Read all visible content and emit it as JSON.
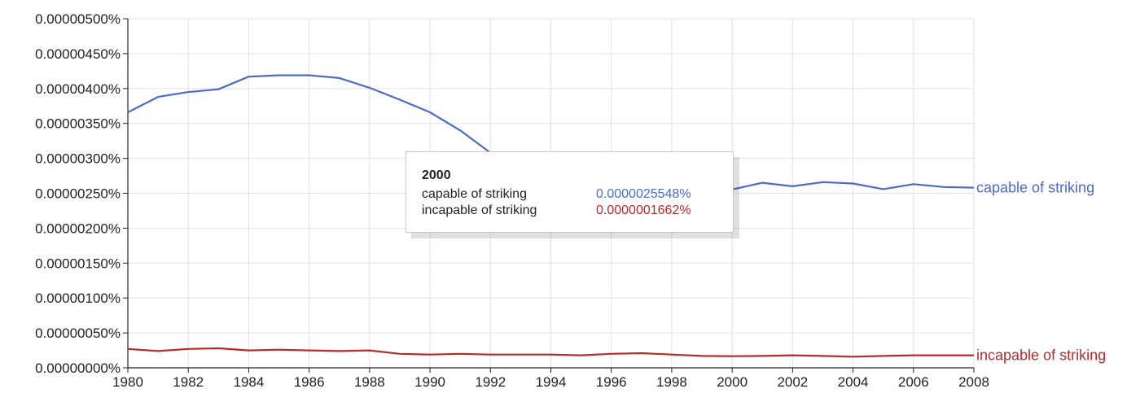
{
  "chart_data": {
    "type": "line",
    "xlim": [
      1980,
      2008
    ],
    "ylim": [
      0,
      5e-06
    ],
    "x_ticks": [
      "1980",
      "1982",
      "1984",
      "1986",
      "1988",
      "1990",
      "1992",
      "1994",
      "1996",
      "1998",
      "2000",
      "2002",
      "2004",
      "2006",
      "2008"
    ],
    "y_ticks": [
      "0.00000000%",
      "0.00000050%",
      "0.00000100%",
      "0.00000150%",
      "0.00000200%",
      "0.00000250%",
      "0.00000300%",
      "0.00000350%",
      "0.00000400%",
      "0.00000450%",
      "0.00000500%"
    ],
    "grid": true,
    "x": [
      1980,
      1981,
      1982,
      1983,
      1984,
      1985,
      1986,
      1987,
      1988,
      1989,
      1990,
      1991,
      1992,
      1993,
      1994,
      1995,
      1996,
      1997,
      1998,
      1999,
      2000,
      2001,
      2002,
      2003,
      2004,
      2005,
      2006,
      2007,
      2008
    ],
    "series": [
      {
        "name": "capable of striking",
        "color": "#4a6cc7",
        "values": [
          3.66e-06,
          3.88e-06,
          3.95e-06,
          3.99e-06,
          4.17e-06,
          4.19e-06,
          4.19e-06,
          4.15e-06,
          4.01e-06,
          3.84e-06,
          3.66e-06,
          3.4e-06,
          3.08e-06,
          2.82e-06,
          2.68e-06,
          2.6e-06,
          2.6e-06,
          2.62e-06,
          2.62e-06,
          2.6e-06,
          2.5548e-06,
          2.65e-06,
          2.6e-06,
          2.66e-06,
          2.64e-06,
          2.56e-06,
          2.63e-06,
          2.59e-06,
          2.58e-06
        ]
      },
      {
        "name": "incapable of striking",
        "color": "#b62b2b",
        "values": [
          2.7e-07,
          2.4e-07,
          2.7e-07,
          2.8e-07,
          2.5e-07,
          2.6e-07,
          2.5e-07,
          2.4e-07,
          2.5e-07,
          2e-07,
          1.9e-07,
          2e-07,
          1.9e-07,
          1.9e-07,
          1.9e-07,
          1.8e-07,
          2e-07,
          2.1e-07,
          1.9e-07,
          1.7e-07,
          1.662e-07,
          1.7e-07,
          1.8e-07,
          1.7e-07,
          1.6e-07,
          1.7e-07,
          1.8e-07,
          1.8e-07,
          1.8e-07
        ]
      }
    ],
    "tooltip": {
      "year": "2000",
      "rows": [
        {
          "name": "capable of striking",
          "value": "0.0000025548%",
          "color": "#4a6cc7"
        },
        {
          "name": "incapable of striking",
          "value": "0.0000001662%",
          "color": "#b62b2b"
        }
      ]
    }
  }
}
